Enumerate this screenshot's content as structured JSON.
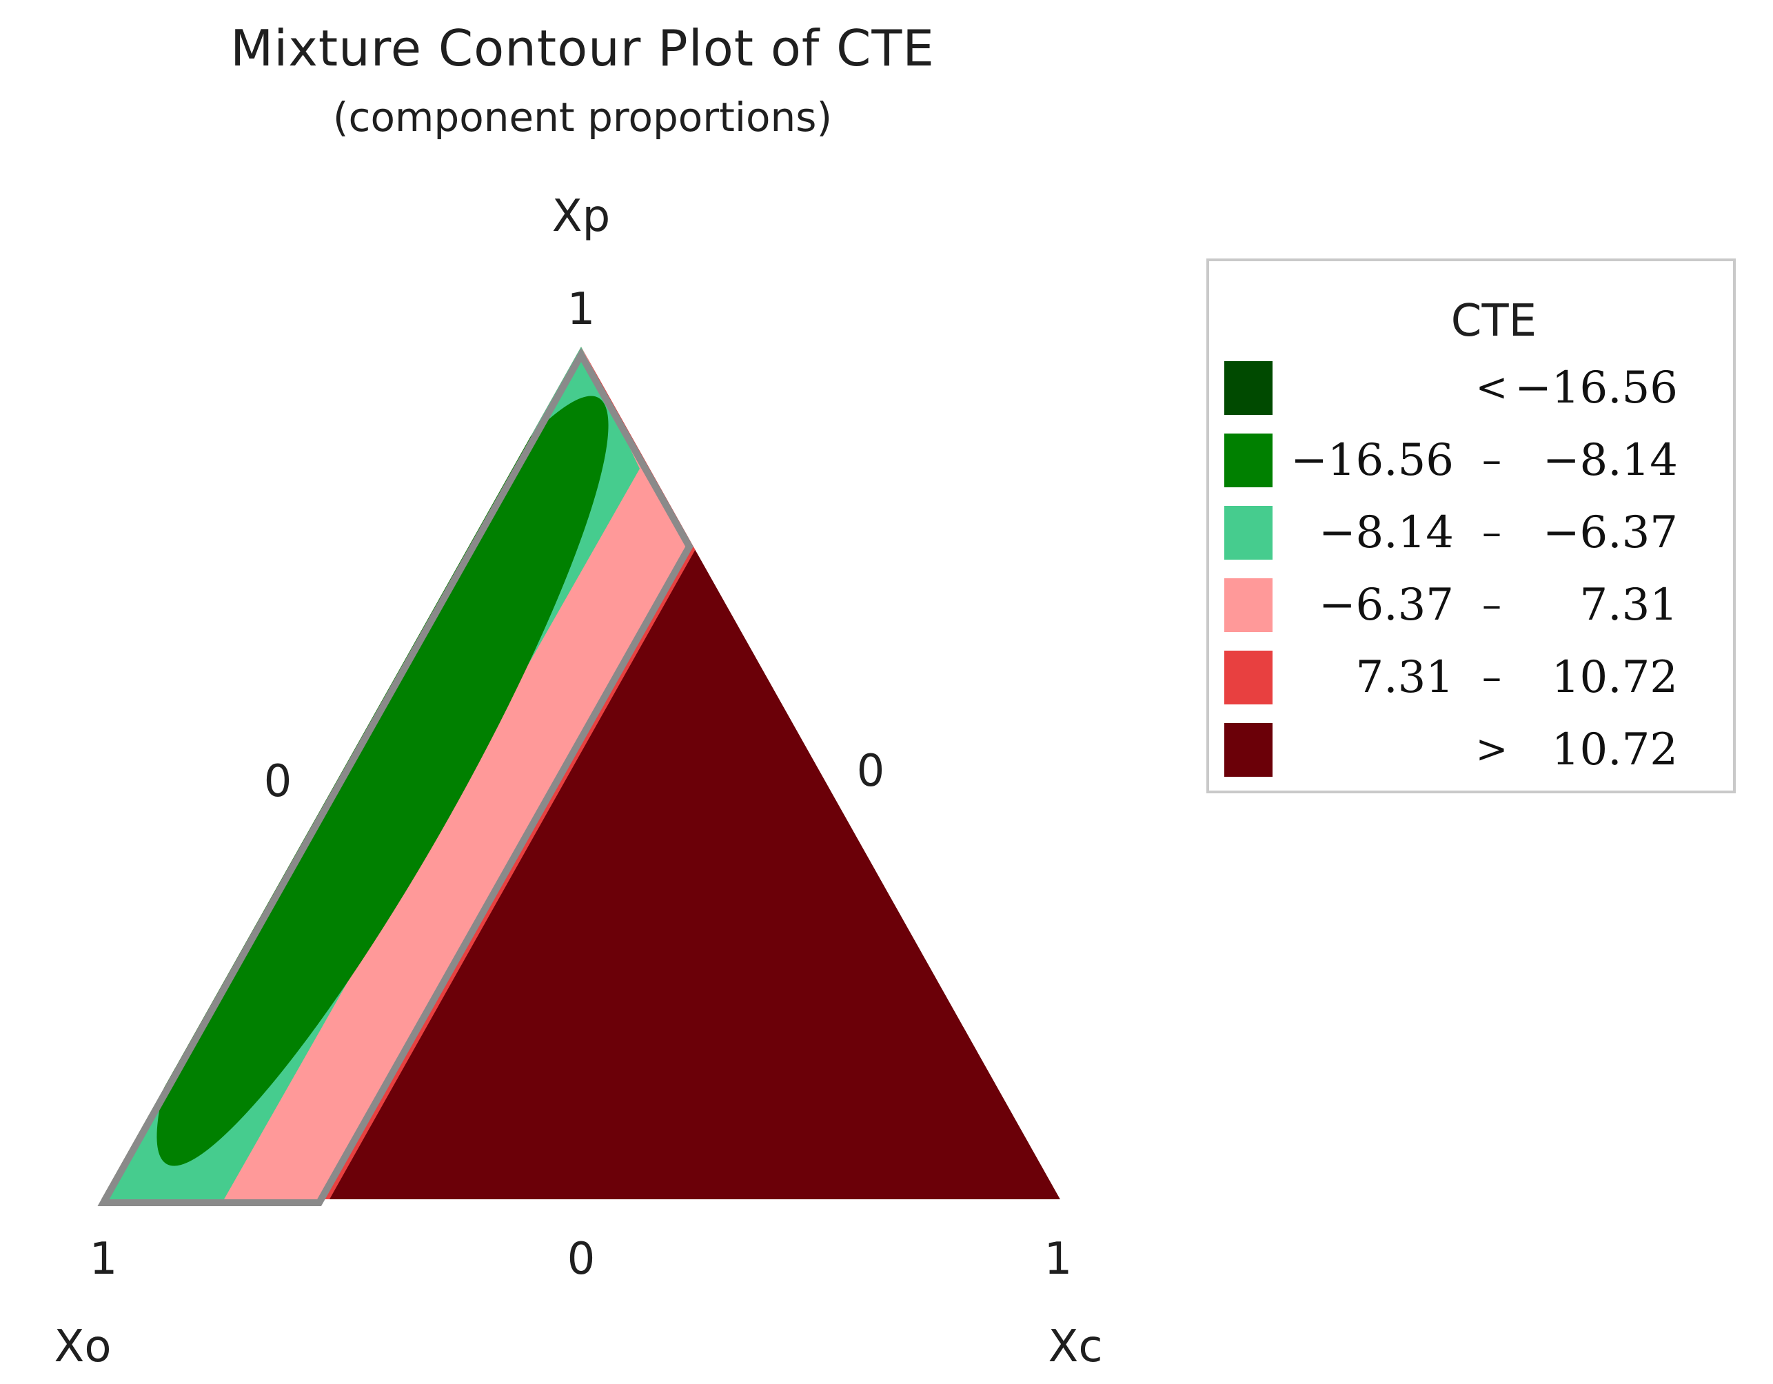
{
  "chart_data": {
    "type": "ternary-contour",
    "title": "Mixture Contour Plot of CTE",
    "subtitle": "(component proportions)",
    "components": {
      "top": {
        "name": "Xp",
        "vertex_label": "1"
      },
      "left": {
        "name": "Xo",
        "vertex_label": "1"
      },
      "right": {
        "name": "Xc",
        "vertex_label": "1"
      }
    },
    "edge_labels": {
      "left": "0",
      "right": "0",
      "bottom": "0"
    },
    "legend": {
      "title": "CTE",
      "placement": "right",
      "bands": [
        {
          "lo": "",
          "sep": "<",
          "hi": "−16.56",
          "color": "#004a00"
        },
        {
          "lo": "−16.56",
          "sep": "–",
          "hi": "−8.14",
          "color": "#008000"
        },
        {
          "lo": "−8.14",
          "sep": "–",
          "hi": "−6.37",
          "color": "#46cc8e"
        },
        {
          "lo": "−6.37",
          "sep": "–",
          "hi": "7.31",
          "color": "#ff9999"
        },
        {
          "lo": "7.31",
          "sep": "–",
          "hi": "10.72",
          "color": "#e84040"
        },
        {
          "lo": "",
          "sep": ">",
          "hi": "10.72",
          "color": "#6b0008"
        }
      ]
    },
    "regions": {
      "outer_light_green_band": {
        "Xo": [
          0.78,
          1.0
        ],
        "color": "#46cc8e"
      },
      "green_ellipse": {
        "color": "#008000"
      },
      "pink_band": {
        "Xo": [
          0.68,
          0.78
        ],
        "color": "#ff9999"
      },
      "red_band": {
        "Xo": [
          0.66,
          0.68
        ],
        "color": "#e84040"
      },
      "dark_red_region": {
        "Xo": [
          0.0,
          0.66
        ],
        "color": "#6b0008"
      }
    },
    "outline_color": "#8a8a8a"
  }
}
